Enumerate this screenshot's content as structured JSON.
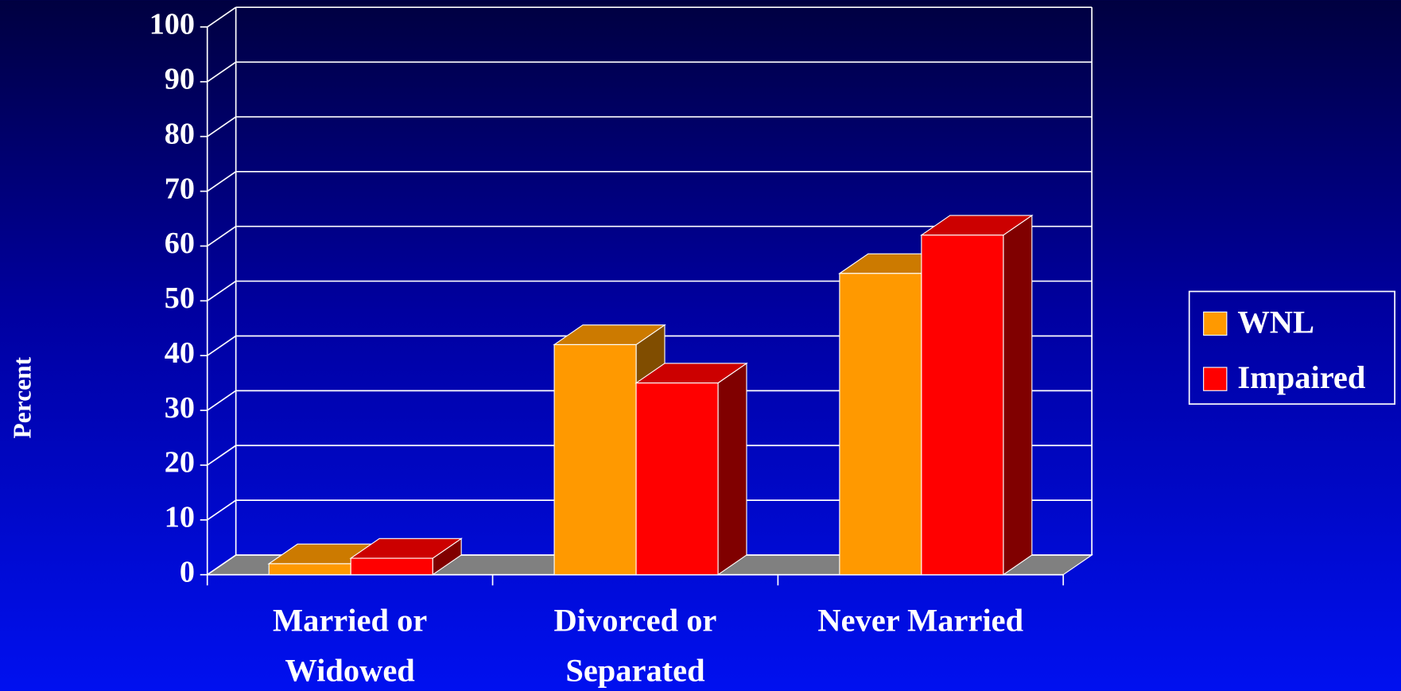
{
  "chart_data": {
    "type": "bar3d",
    "y_label": "Percent",
    "categories": [
      "Married or Widowed",
      "Divorced or Separated",
      "Never Married"
    ],
    "series": [
      {
        "name": "WNL",
        "color": "#ff9900",
        "values": [
          2,
          42,
          55
        ]
      },
      {
        "name": "Impaired",
        "color": "#ff0000",
        "values": [
          3,
          35,
          62
        ]
      }
    ],
    "ylim": [
      0,
      100
    ],
    "yticks": [
      0,
      10,
      20,
      30,
      40,
      50,
      60,
      70,
      80,
      90,
      100
    ],
    "grid": true,
    "legend": "right"
  }
}
